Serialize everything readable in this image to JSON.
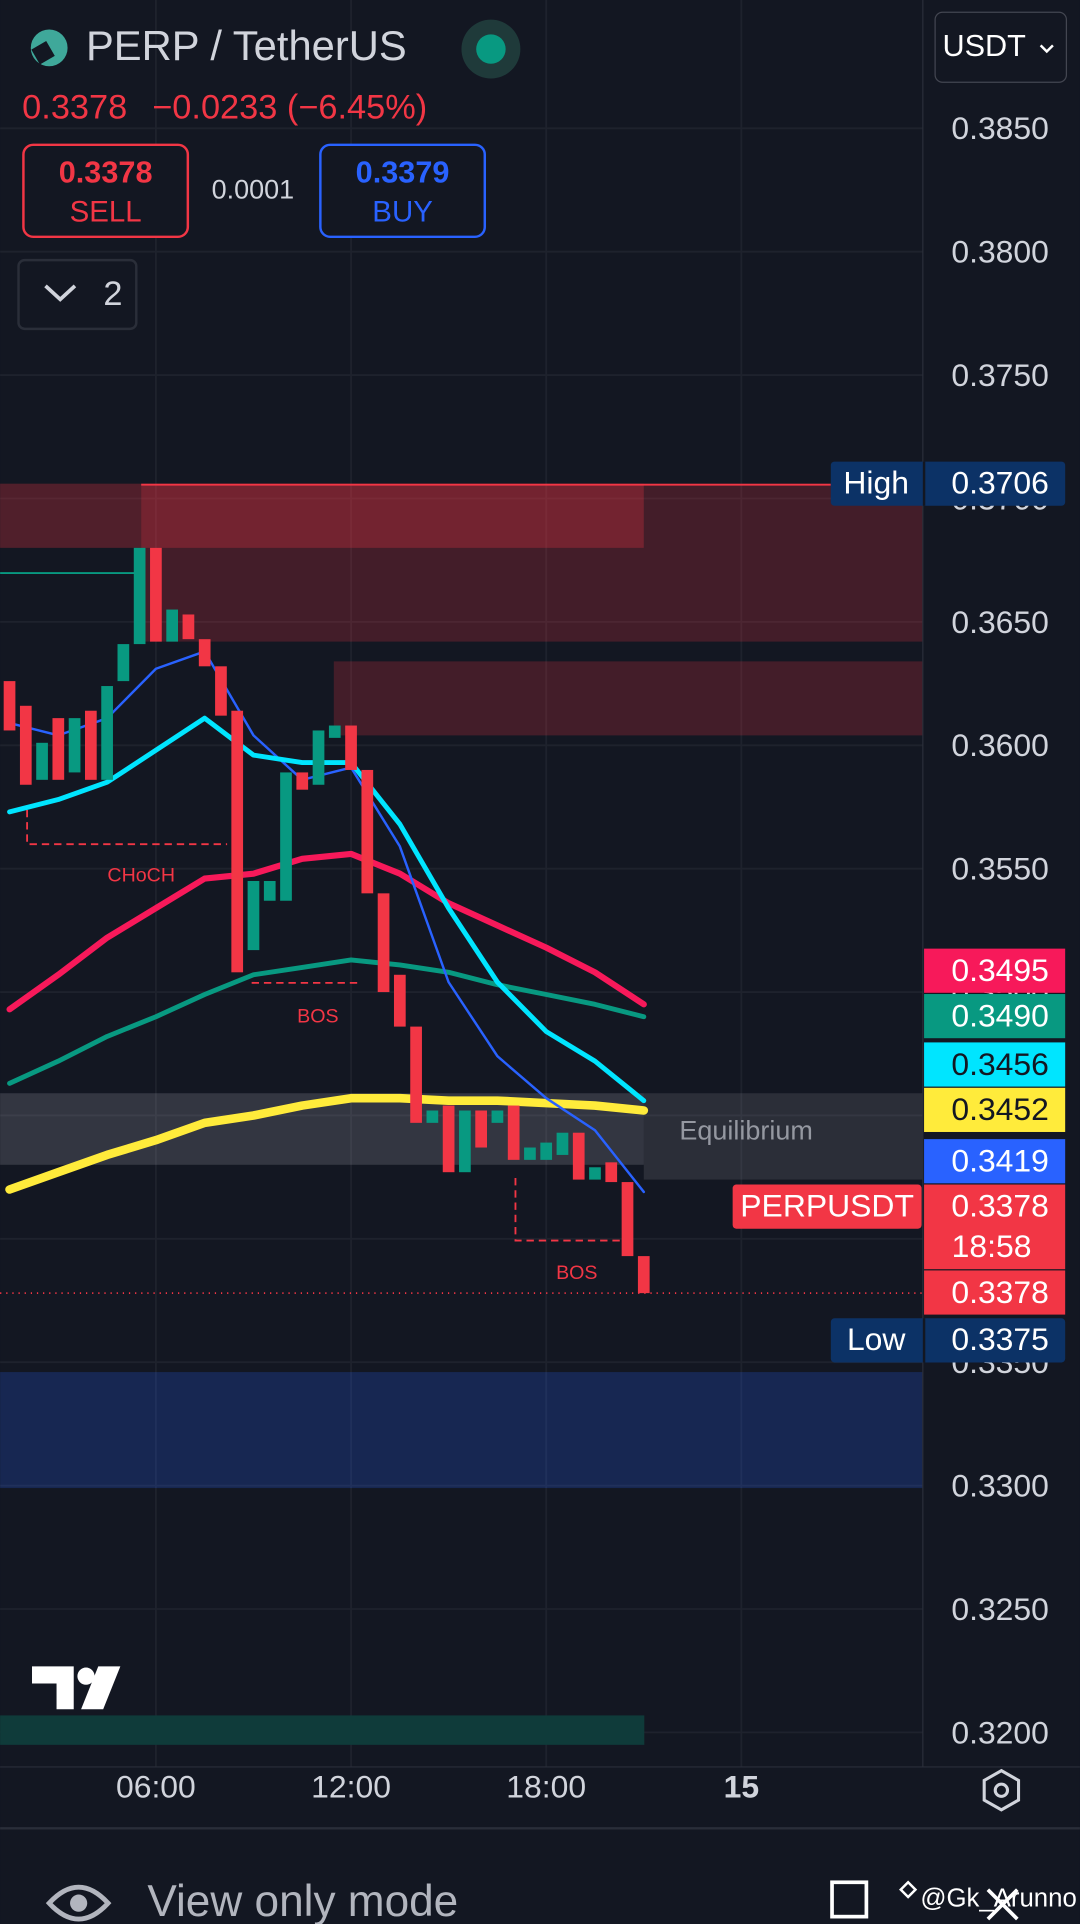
{
  "header": {
    "symbol": "PERP / TetherUS",
    "last": "0.3378",
    "change": "−0.0233 (−6.45%)",
    "sell_price": "0.3378",
    "sell_label": "SELL",
    "spread": "0.0001",
    "buy_price": "0.3379",
    "buy_label": "BUY",
    "indicator_count": "2",
    "currency": "USDT"
  },
  "chart_data": {
    "type": "candlestick",
    "x": [
      1.5,
      2,
      2.5,
      3,
      3.5,
      4,
      4.5,
      5,
      5.5,
      6,
      6.5,
      7,
      7.5,
      8,
      8.5,
      9,
      9.5,
      10,
      10.5,
      11,
      11.5,
      12,
      12.5,
      13,
      13.5,
      14,
      14.5,
      15,
      15.5,
      16,
      16.5,
      17,
      17.5,
      18,
      18.5,
      19,
      19.5,
      20,
      20.5,
      21
    ],
    "open": [
      0.3626,
      0.3616,
      0.3586,
      0.3611,
      0.3589,
      0.3614,
      0.3586,
      0.3626,
      0.3641,
      0.368,
      0.3642,
      0.3653,
      0.3643,
      0.3632,
      0.3614,
      0.3517,
      0.3537,
      0.3537,
      0.3589,
      0.3584,
      0.3603,
      0.3608,
      0.359,
      0.354,
      0.3507,
      0.3486,
      0.3447,
      0.3454,
      0.3427,
      0.3452,
      0.3447,
      0.3454,
      0.3432,
      0.3432,
      0.3434,
      0.3443,
      0.3424,
      0.3431,
      0.3423,
      0.3393
    ],
    "high": {
      "label": "High",
      "value": 0.3706
    },
    "low": {
      "label": "Low",
      "value": 0.3375
    },
    "close": [
      0.3606,
      0.3584,
      0.3601,
      0.3586,
      0.3611,
      0.3586,
      0.3624,
      0.3641,
      0.368,
      0.3642,
      0.3655,
      0.3643,
      0.3632,
      0.3612,
      0.3508,
      0.3545,
      0.3545,
      0.3589,
      0.3582,
      0.3606,
      0.3608,
      0.359,
      0.354,
      0.35,
      0.3486,
      0.3447,
      0.3452,
      0.3427,
      0.3452,
      0.3437,
      0.3452,
      0.3432,
      0.3437,
      0.3439,
      0.3443,
      0.3424,
      0.3429,
      0.3423,
      0.3393,
      0.3378
    ],
    "up_color": "#089981",
    "down_color": "#f23645",
    "line_x": [
      1.5,
      3,
      4.5,
      6,
      7.5,
      9,
      10.5,
      12,
      13.5,
      15,
      16.5,
      18,
      19.5,
      21
    ],
    "lines": [
      {
        "color": "#ffeb3b",
        "width": 7,
        "values": [
          0.342,
          0.3427,
          0.3434,
          0.344,
          0.3447,
          0.345,
          0.3454,
          0.3457,
          0.3457,
          0.3456,
          0.3456,
          0.3455,
          0.3454,
          0.3452
        ]
      },
      {
        "color": "#089981",
        "width": 4,
        "values": [
          0.3463,
          0.3472,
          0.3482,
          0.349,
          0.3499,
          0.3507,
          0.351,
          0.3513,
          0.3511,
          0.3508,
          0.3503,
          0.3499,
          0.3495,
          0.349
        ]
      },
      {
        "color": "#f7195a",
        "width": 5,
        "values": [
          0.3493,
          0.3507,
          0.3522,
          0.3534,
          0.3546,
          0.3548,
          0.3554,
          0.3556,
          0.3548,
          0.3536,
          0.3527,
          0.3518,
          0.3508,
          0.3495
        ]
      },
      {
        "color": "#2962ff",
        "width": 2,
        "values": [
          0.3609,
          0.3604,
          0.3611,
          0.3631,
          0.3638,
          0.3604,
          0.3586,
          0.3591,
          0.3559,
          0.3504,
          0.3474,
          0.3457,
          0.3444,
          0.3419
        ]
      },
      {
        "color": "#00e5ff",
        "width": 4,
        "values": [
          0.3573,
          0.3578,
          0.3585,
          0.3598,
          0.3611,
          0.3596,
          0.3593,
          0.3593,
          0.3568,
          0.3534,
          0.3504,
          0.3484,
          0.3472,
          0.3456
        ]
      }
    ],
    "zones": [
      {
        "from": 0.3706,
        "to": 0.3642,
        "x_from": 5.55,
        "x_to": 29.58,
        "color": "rgba(242,54,69,0.22)"
      },
      {
        "from": 0.3706,
        "to": 0.368,
        "x_from": 1.21,
        "x_to": 21,
        "color": "rgba(242,54,69,0.28)"
      },
      {
        "from": 0.3634,
        "to": 0.3604,
        "x_from": 11.47,
        "x_to": 29.58,
        "color": "rgba(242,54,69,0.22)"
      },
      {
        "from": 0.3459,
        "to": 0.343,
        "x_from": 1.21,
        "x_to": 21,
        "color": "rgba(178,181,190,0.2)"
      },
      {
        "from": 0.3459,
        "to": 0.3424,
        "x_from": 21,
        "x_to": 29.58,
        "color": "rgba(178,181,190,0.15)"
      },
      {
        "from": 0.3346,
        "to": 0.3299,
        "x_from": 1.21,
        "x_to": 29.58,
        "color": "rgba(41,98,255,0.22)"
      }
    ],
    "annotations": [
      "CHoCH",
      "BOS",
      "BOS",
      "Equilibrium"
    ],
    "xlim": [
      1.21,
      29.58
    ],
    "ylim": [
      0.3186,
      0.3902
    ],
    "xticks": [
      {
        "value": 6,
        "label": "06:00"
      },
      {
        "value": 12,
        "label": "12:00"
      },
      {
        "value": 18,
        "label": "18:00"
      },
      {
        "value": 24,
        "label": "15"
      }
    ],
    "yticks": [
      {
        "value": 0.385,
        "label": "0.3850"
      },
      {
        "value": 0.38,
        "label": "0.3800"
      },
      {
        "value": 0.375,
        "label": "0.3750"
      },
      {
        "value": 0.37,
        "label": "0.3700"
      },
      {
        "value": 0.365,
        "label": "0.3650"
      },
      {
        "value": 0.36,
        "label": "0.3600"
      },
      {
        "value": 0.355,
        "label": "0.3550"
      },
      {
        "value": 0.35,
        "label": "0.3500"
      },
      {
        "value": 0.345,
        "label": "0.3450"
      },
      {
        "value": 0.34,
        "label": "0.3400"
      },
      {
        "value": 0.335,
        "label": "0.3350"
      },
      {
        "value": 0.33,
        "label": "0.3300"
      },
      {
        "value": 0.325,
        "label": "0.3250"
      },
      {
        "value": 0.32,
        "label": "0.3200"
      }
    ],
    "grid": true,
    "price_tags": [
      {
        "value": 0.3495,
        "color": "#f7195a",
        "text_color": "#ffffff"
      },
      {
        "value": 0.349,
        "label": "0.3490",
        "color": "#089981",
        "text_color": "#ffffff"
      },
      {
        "value": 0.3456,
        "color": "#00e5ff",
        "text_color": "#131722"
      },
      {
        "value": 0.3452,
        "color": "#ffeb3b",
        "text_color": "#131722"
      },
      {
        "value": 0.3419,
        "color": "#2962ff",
        "text_color": "#ffffff"
      },
      {
        "value": 0.3378,
        "name": "PERPUSDT",
        "countdown": "18:58",
        "color": "#f23645",
        "text_color": "#ffffff"
      },
      {
        "value": 0.3378,
        "color": "#f23645",
        "text_color": "#ffffff"
      }
    ]
  },
  "footer": {
    "mode": "View only mode",
    "watermark": "@Gk_Arunno"
  }
}
